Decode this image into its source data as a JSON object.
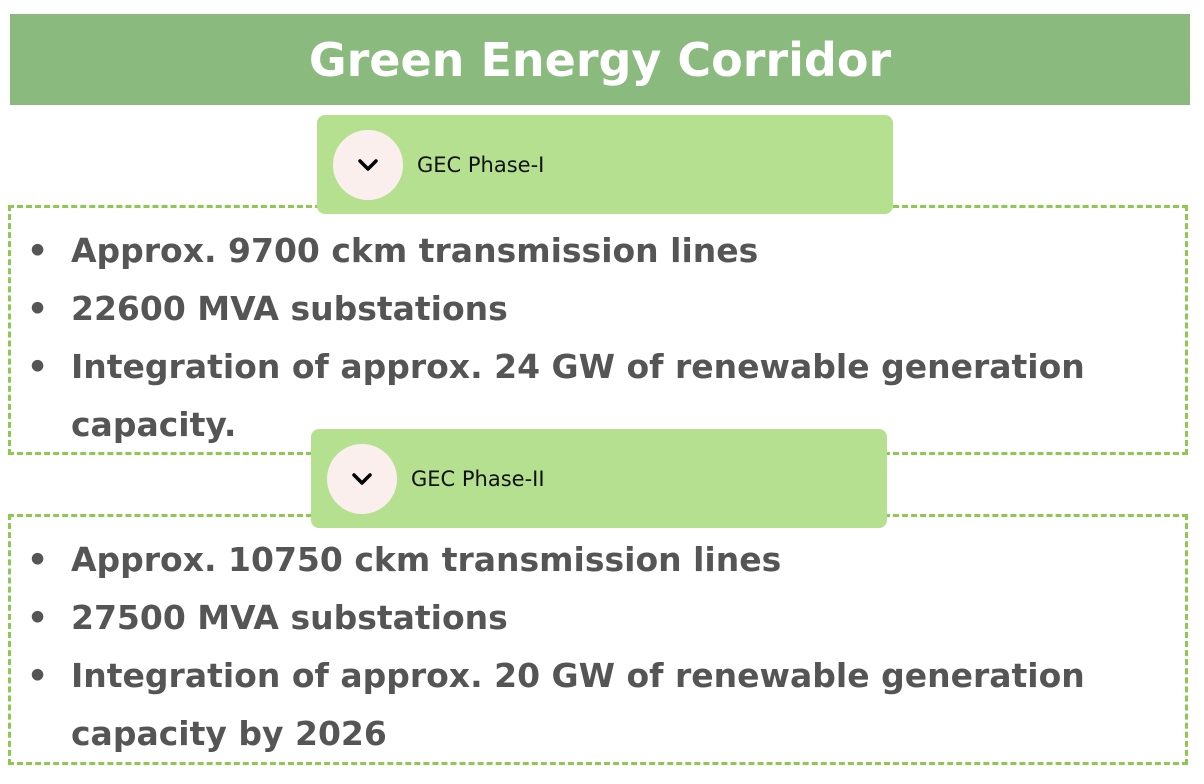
{
  "title": "Green Energy Corridor",
  "sections": [
    {
      "label": "GEC Phase-I",
      "items": [
        "Approx. 9700 ckm transmission lines",
        "22600 MVA substations",
        "Integration of approx. 24 GW of renewable generation capacity."
      ]
    },
    {
      "label": "GEC Phase-II",
      "items": [
        "Approx. 10750 ckm transmission lines",
        "27500 MVA substations",
        "Integration of approx. 20 GW of renewable generation capacity by 2026"
      ]
    }
  ]
}
